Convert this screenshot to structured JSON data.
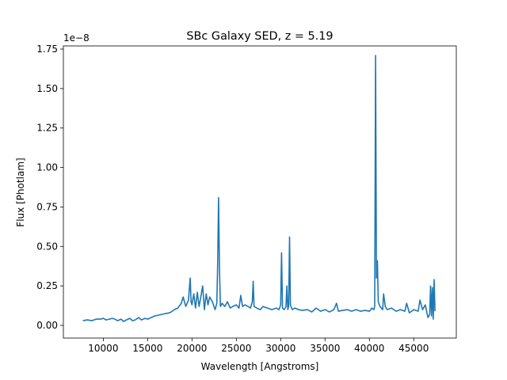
{
  "chart_data": {
    "type": "line",
    "title": "SBc Galaxy SED, z = 5.19",
    "xlabel": "Wavelength [Angstroms]",
    "ylabel": "Flux [Photlam]",
    "y_offset_label": "1e−8",
    "xlim": [
      5500,
      49800
    ],
    "ylim": [
      -0.08,
      1.77
    ],
    "xticks": [
      10000,
      15000,
      20000,
      25000,
      30000,
      35000,
      40000,
      45000
    ],
    "xtick_labels": [
      "10000",
      "15000",
      "20000",
      "25000",
      "30000",
      "35000",
      "40000",
      "45000"
    ],
    "yticks": [
      0.0,
      0.25,
      0.5,
      0.75,
      1.0,
      1.25,
      1.5,
      1.75
    ],
    "ytick_labels": [
      "0.00",
      "0.25",
      "0.50",
      "0.75",
      "1.00",
      "1.25",
      "1.50",
      "1.75"
    ],
    "line_color": "#1f77b4",
    "series": [
      {
        "x": [
          7700,
          8200,
          8700,
          9200,
          9700,
          10000,
          10300,
          10700,
          11000,
          11300,
          11600,
          12000,
          12300,
          12600,
          13000,
          13300,
          13600,
          14000,
          14300,
          14700,
          15000,
          15400,
          15800,
          16200,
          16600,
          17000,
          17500,
          18000,
          18400,
          18800,
          19000,
          19300,
          19600,
          19800,
          19900,
          20000,
          20200,
          20400,
          20600,
          20800,
          21000,
          21200,
          21400,
          21600,
          21800,
          22000,
          22300,
          22600,
          22800,
          22900,
          23000,
          23100,
          23200,
          23400,
          23700,
          24000,
          24300,
          24600,
          25000,
          25300,
          25500,
          25700,
          26000,
          26300,
          26600,
          26800,
          26900,
          27000,
          27300,
          27700,
          28000,
          28500,
          29000,
          29500,
          29800,
          30000,
          30100,
          30200,
          30400,
          30600,
          30700,
          30800,
          30900,
          31000,
          31100,
          31300,
          31600,
          32000,
          32500,
          33000,
          33500,
          34000,
          34500,
          35000,
          35500,
          36000,
          36300,
          36500,
          37000,
          37500,
          38000,
          38500,
          39000,
          39500,
          40000,
          40300,
          40500,
          40600,
          40700,
          40800,
          40900,
          41000,
          41200,
          41500,
          41600,
          41800,
          42000,
          42500,
          43000,
          43500,
          44000,
          44200,
          44500,
          45000,
          45500,
          45700,
          46000,
          46300,
          46600,
          46800,
          46900,
          47000,
          47100,
          47200,
          47300,
          47400
        ],
        "y": [
          0.03,
          0.035,
          0.03,
          0.04,
          0.04,
          0.045,
          0.035,
          0.04,
          0.045,
          0.04,
          0.03,
          0.04,
          0.025,
          0.035,
          0.045,
          0.03,
          0.035,
          0.05,
          0.035,
          0.045,
          0.04,
          0.05,
          0.06,
          0.065,
          0.07,
          0.075,
          0.08,
          0.1,
          0.11,
          0.14,
          0.18,
          0.12,
          0.16,
          0.3,
          0.15,
          0.13,
          0.2,
          0.11,
          0.21,
          0.12,
          0.18,
          0.25,
          0.1,
          0.2,
          0.13,
          0.18,
          0.15,
          0.1,
          0.14,
          0.4,
          0.81,
          0.35,
          0.12,
          0.14,
          0.12,
          0.15,
          0.11,
          0.12,
          0.13,
          0.11,
          0.19,
          0.12,
          0.13,
          0.12,
          0.11,
          0.15,
          0.28,
          0.12,
          0.11,
          0.1,
          0.12,
          0.11,
          0.1,
          0.11,
          0.1,
          0.13,
          0.46,
          0.11,
          0.1,
          0.12,
          0.25,
          0.1,
          0.12,
          0.56,
          0.13,
          0.1,
          0.11,
          0.1,
          0.095,
          0.1,
          0.085,
          0.11,
          0.09,
          0.1,
          0.085,
          0.1,
          0.14,
          0.09,
          0.095,
          0.1,
          0.09,
          0.1,
          0.09,
          0.095,
          0.09,
          0.11,
          0.1,
          0.12,
          1.71,
          0.3,
          0.41,
          0.15,
          0.12,
          0.1,
          0.2,
          0.12,
          0.1,
          0.11,
          0.09,
          0.1,
          0.09,
          0.14,
          0.08,
          0.1,
          0.09,
          0.16,
          0.1,
          0.13,
          0.05,
          0.07,
          0.25,
          0.06,
          0.24,
          0.04,
          0.29,
          0.09
        ]
      }
    ]
  }
}
